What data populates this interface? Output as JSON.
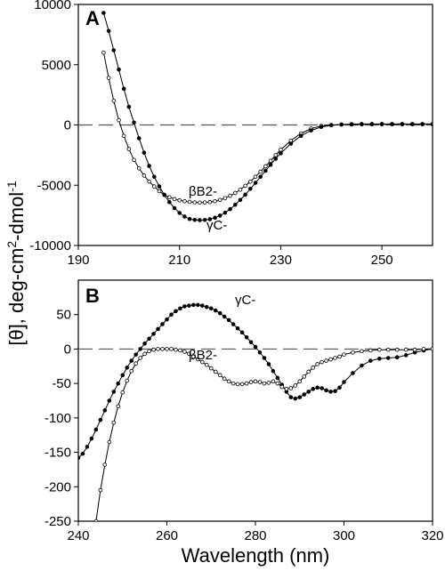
{
  "figure": {
    "xlabel": "Wavelength (nm)",
    "ylabel_main": "[θ], deg-cm",
    "ylabel_sup1": "2",
    "ylabel_mid": "-dmol",
    "ylabel_sup2": "-1"
  },
  "chart_data": [
    {
      "type": "line",
      "panel": "A",
      "xlim": [
        190,
        260
      ],
      "ylim": [
        -10000,
        10000
      ],
      "xticks": [
        190,
        210,
        230,
        250
      ],
      "yticks": [
        -10000,
        -5000,
        0,
        5000,
        10000
      ],
      "zero_line": "dashed",
      "series": [
        {
          "name": "βB2-",
          "marker": "open-circle",
          "x": [
            195,
            196,
            197,
            198,
            199,
            200,
            201,
            202,
            203,
            204,
            205,
            206,
            207,
            208,
            209,
            210,
            211,
            212,
            213,
            214,
            215,
            216,
            217,
            218,
            219,
            220,
            221,
            222,
            223,
            224,
            225,
            226,
            227,
            228,
            229,
            230,
            232,
            234,
            236,
            238,
            240,
            242,
            244,
            246,
            248,
            250,
            252,
            254,
            256,
            258,
            260
          ],
          "y": [
            6000,
            3900,
            2000,
            400,
            -900,
            -2000,
            -2900,
            -3600,
            -4200,
            -4700,
            -5100,
            -5500,
            -5800,
            -6000,
            -6150,
            -6250,
            -6330,
            -6380,
            -6420,
            -6440,
            -6430,
            -6400,
            -6330,
            -6220,
            -6070,
            -5880,
            -5650,
            -5370,
            -5050,
            -4700,
            -4300,
            -3880,
            -3430,
            -2970,
            -2500,
            -2050,
            -1300,
            -700,
            -300,
            -80,
            0,
            30,
            40,
            50,
            60,
            60,
            60,
            60,
            60,
            60,
            60
          ]
        },
        {
          "name": "γC-",
          "marker": "filled-circle",
          "x": [
            195,
            196,
            197,
            198,
            199,
            200,
            201,
            202,
            203,
            204,
            205,
            206,
            207,
            208,
            209,
            210,
            211,
            212,
            213,
            214,
            215,
            216,
            217,
            218,
            219,
            220,
            221,
            222,
            223,
            224,
            225,
            226,
            227,
            228,
            229,
            230,
            232,
            234,
            236,
            238,
            240,
            242,
            244,
            246,
            248,
            250,
            252,
            254,
            256,
            258,
            260
          ],
          "y": [
            9300,
            7800,
            6200,
            4600,
            3000,
            1500,
            200,
            -1100,
            -2300,
            -3400,
            -4300,
            -5100,
            -5800,
            -6400,
            -6900,
            -7300,
            -7600,
            -7800,
            -7880,
            -7900,
            -7880,
            -7820,
            -7700,
            -7520,
            -7280,
            -6980,
            -6620,
            -6220,
            -5780,
            -5300,
            -4800,
            -4300,
            -3800,
            -3300,
            -2800,
            -2350,
            -1550,
            -900,
            -450,
            -170,
            -30,
            40,
            70,
            80,
            80,
            80,
            80,
            80,
            80,
            80,
            80
          ]
        }
      ]
    },
    {
      "type": "line",
      "panel": "B",
      "xlim": [
        240,
        320
      ],
      "ylim": [
        -250,
        100
      ],
      "xticks": [
        240,
        260,
        280,
        300,
        320
      ],
      "yticks": [
        -250,
        -200,
        -150,
        -100,
        -50,
        0,
        50
      ],
      "zero_line": "dashed",
      "series": [
        {
          "name": "γC-",
          "marker": "filled-circle",
          "x": [
            240,
            241,
            242,
            243,
            244,
            245,
            246,
            247,
            248,
            249,
            250,
            251,
            252,
            253,
            254,
            255,
            256,
            257,
            258,
            259,
            260,
            261,
            262,
            263,
            264,
            265,
            266,
            267,
            268,
            269,
            270,
            271,
            272,
            273,
            274,
            275,
            276,
            277,
            278,
            279,
            280,
            281,
            282,
            283,
            284,
            285,
            286,
            287,
            288,
            289,
            290,
            291,
            292,
            293,
            294,
            295,
            296,
            297,
            298,
            299,
            300,
            302,
            304,
            306,
            308,
            310,
            312,
            314,
            316,
            318,
            320
          ],
          "y": [
            -158,
            -152,
            -142,
            -130,
            -117,
            -103,
            -89,
            -75,
            -62,
            -50,
            -38,
            -27,
            -17,
            -8,
            0,
            8,
            15,
            22,
            29,
            36,
            43,
            50,
            55,
            59,
            62,
            63,
            64,
            64,
            63,
            61,
            59,
            56,
            52,
            47,
            42,
            36,
            30,
            24,
            17,
            10,
            3,
            -5,
            -13,
            -22,
            -32,
            -42,
            -52,
            -62,
            -70,
            -72,
            -70,
            -66,
            -62,
            -58,
            -56,
            -57,
            -60,
            -62,
            -61,
            -56,
            -48,
            -35,
            -24,
            -17,
            -14,
            -13,
            -12,
            -9,
            -5,
            -2,
            0
          ]
        },
        {
          "name": "βB2-",
          "marker": "open-circle",
          "x": [
            244,
            245,
            246,
            247,
            248,
            249,
            250,
            251,
            252,
            253,
            254,
            255,
            256,
            257,
            258,
            259,
            260,
            261,
            262,
            263,
            264,
            265,
            266,
            267,
            268,
            269,
            270,
            271,
            272,
            273,
            274,
            275,
            276,
            277,
            278,
            279,
            280,
            281,
            282,
            283,
            284,
            285,
            286,
            287,
            288,
            289,
            290,
            291,
            292,
            293,
            294,
            295,
            296,
            297,
            298,
            299,
            300,
            302,
            304,
            306,
            308,
            310,
            312,
            314,
            316,
            318,
            320
          ],
          "y": [
            -250,
            -205,
            -168,
            -135,
            -107,
            -83,
            -63,
            -46,
            -32,
            -21,
            -13,
            -7,
            -3,
            -1,
            0,
            0,
            0,
            0,
            -1,
            -2,
            -4,
            -7,
            -11,
            -15,
            -19,
            -23,
            -28,
            -33,
            -38,
            -43,
            -47,
            -50,
            -51,
            -51,
            -50,
            -48,
            -47,
            -48,
            -50,
            -49,
            -47,
            -50,
            -55,
            -58,
            -57,
            -53,
            -47,
            -40,
            -33,
            -27,
            -22,
            -19,
            -17,
            -15,
            -13,
            -11,
            -8,
            -5,
            -3,
            -2,
            -1,
            -1,
            -1,
            -1,
            -1,
            0,
            0
          ]
        }
      ]
    }
  ]
}
